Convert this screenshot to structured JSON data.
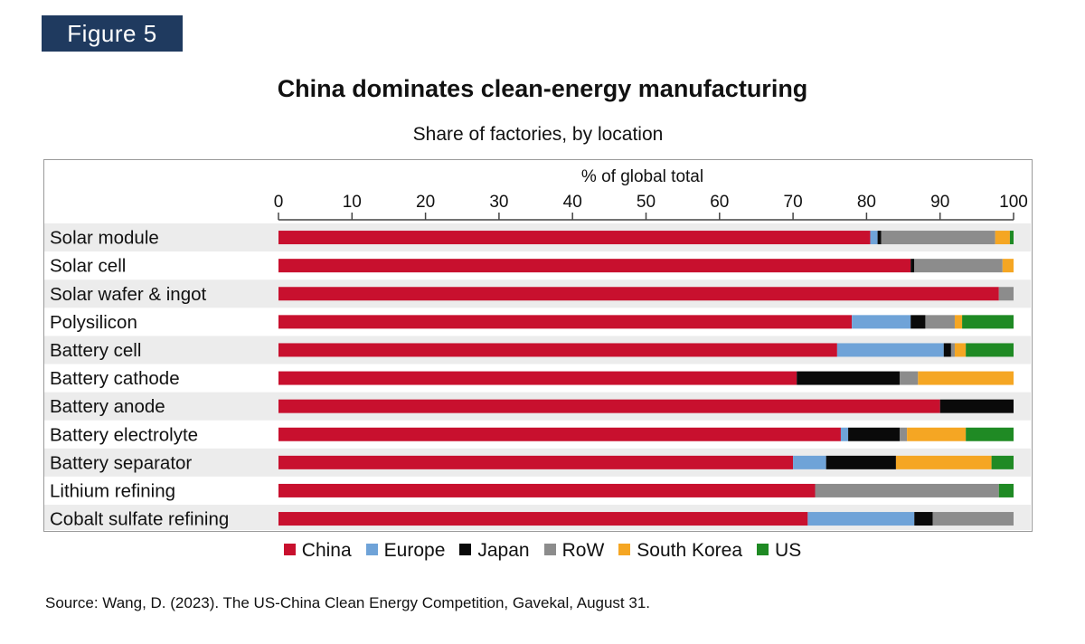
{
  "badge": "Figure 5",
  "source": "Source: Wang, D. (2023). The US-China Clean Energy Competition, Gavekal, August 31.",
  "chart_data": {
    "type": "bar",
    "orientation": "horizontal",
    "stacked": true,
    "title": "China dominates clean-energy manufacturing",
    "subtitle": "Share of factories, by location",
    "xlabel": "% of global total",
    "xlim": [
      0,
      100
    ],
    "xticks": [
      "0",
      "10",
      "20",
      "30",
      "40",
      "50",
      "60",
      "70",
      "80",
      "90",
      "100"
    ],
    "legend_position": "bottom",
    "categories": [
      "Solar module",
      "Solar cell",
      "Solar wafer & ingot",
      "Polysilicon",
      "Battery cell",
      "Battery cathode",
      "Battery anode",
      "Battery electrolyte",
      "Battery separator",
      "Lithium refining",
      "Cobalt sulfate refining"
    ],
    "series": [
      {
        "name": "China",
        "color": "#c8102e",
        "values": [
          80.5,
          86,
          98,
          78,
          76,
          70.5,
          90,
          76.5,
          70,
          73,
          72
        ]
      },
      {
        "name": "Europe",
        "color": "#6fa3d8",
        "values": [
          1,
          0,
          0,
          8,
          14.5,
          0,
          0,
          1,
          4.5,
          0,
          14.5
        ]
      },
      {
        "name": "Japan",
        "color": "#0a0a0a",
        "values": [
          0.5,
          0.5,
          0,
          2,
          1,
          14,
          10,
          7,
          9.5,
          0,
          2.5
        ]
      },
      {
        "name": "RoW",
        "color": "#8c8c8c",
        "values": [
          15.5,
          12,
          2,
          4,
          0.5,
          2.5,
          0,
          1,
          0,
          25,
          11
        ]
      },
      {
        "name": "South Korea",
        "color": "#f5a623",
        "values": [
          2,
          1.5,
          0,
          1,
          1.5,
          13,
          0,
          8,
          13,
          0,
          0
        ]
      },
      {
        "name": "US",
        "color": "#1f8a24",
        "values": [
          0.5,
          0,
          0,
          7,
          6.5,
          0,
          0,
          6.5,
          3,
          2,
          0
        ]
      }
    ]
  }
}
